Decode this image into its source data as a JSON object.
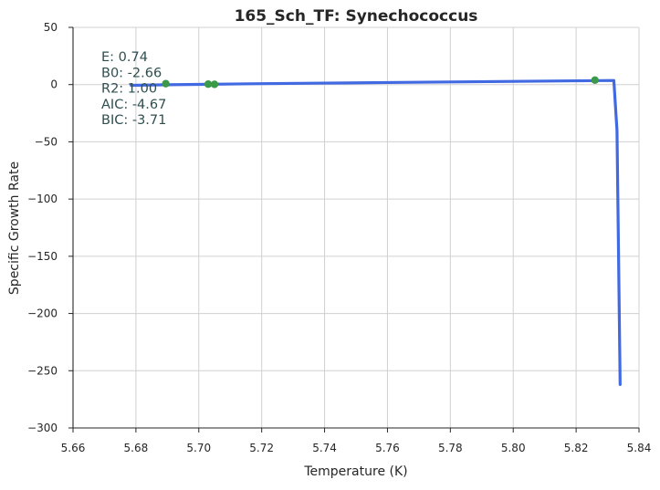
{
  "chart_data": {
    "type": "line",
    "title": "165_Sch_TF: Synechococcus",
    "xlabel": "Temperature (K)",
    "ylabel": "Specific Growth Rate",
    "xlim": [
      5.66,
      5.84
    ],
    "ylim": [
      -300,
      50
    ],
    "xticks": [
      5.66,
      5.68,
      5.7,
      5.72,
      5.74,
      5.76,
      5.78,
      5.8,
      5.82,
      5.84
    ],
    "yticks": [
      50,
      0,
      -50,
      -100,
      -150,
      -200,
      -250,
      -300
    ],
    "xtick_labels": [
      "5.66",
      "5.68",
      "5.70",
      "5.72",
      "5.74",
      "5.76",
      "5.78",
      "5.80",
      "5.82",
      "5.84"
    ],
    "ytick_labels": [
      "50",
      "0",
      "−50",
      "−100",
      "−150",
      "−200",
      "−250",
      "−300"
    ],
    "grid": true,
    "series": [
      {
        "kind": "scatter",
        "color": "#3a9a4a",
        "x": [
          5.6895,
          5.703,
          5.705,
          5.826
        ],
        "y": [
          0.8,
          0.4,
          0.2,
          3.9
        ]
      },
      {
        "kind": "line",
        "color": "#4169e1",
        "x": [
          5.6785,
          5.69,
          5.703,
          5.72,
          5.74,
          5.76,
          5.78,
          5.8,
          5.82,
          5.832,
          5.833,
          5.8335,
          5.834
        ],
        "y": [
          -0.6,
          -0.1,
          0.3,
          0.8,
          1.3,
          1.8,
          2.3,
          2.8,
          3.3,
          3.6,
          -40,
          -150,
          -262
        ]
      }
    ],
    "annotations": [
      "E:  0.74",
      "B0:  -2.66",
      "R2:  1.00",
      "AIC: -4.67",
      "BIC: -3.71"
    ],
    "annotation_color": "#2f4f4f"
  }
}
